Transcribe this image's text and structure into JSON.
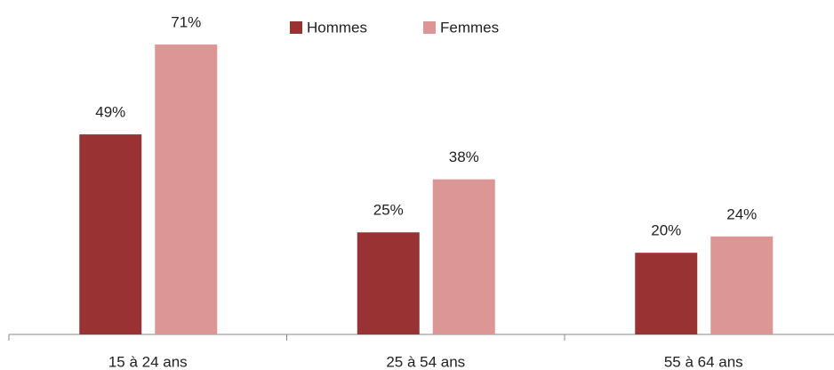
{
  "chart_data": {
    "type": "bar",
    "categories": [
      "15 à 24 ans",
      "25 à 54 ans",
      "55 à 64 ans"
    ],
    "series": [
      {
        "name": "Hommes",
        "color": "#993333",
        "values": [
          49,
          25,
          20
        ],
        "value_labels": [
          "49%",
          "25%",
          "20%"
        ]
      },
      {
        "name": "Femmes",
        "color": "#dc9696",
        "values": [
          71,
          38,
          24
        ],
        "value_labels": [
          "71%",
          "38%",
          "24%"
        ]
      }
    ],
    "legend": "top"
  }
}
